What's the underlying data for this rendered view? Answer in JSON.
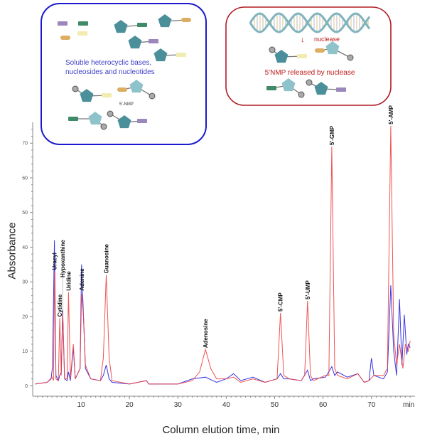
{
  "inset_left": {
    "caption_line1": "Soluble heterocyclic bases,",
    "caption_line2": "nucleosides and nucleotides",
    "molecule_label": "5'-NMP",
    "border_color": "#1a1acc"
  },
  "inset_right": {
    "arrow_label": "nuclease",
    "caption": "5'NMP released by nuclease",
    "border_color": "#b01c24"
  },
  "chart_data": {
    "type": "line",
    "xlabel": "Column elution time, min",
    "ylabel": "Absorbance",
    "x_unit_label": "min",
    "xlim": [
      0,
      79
    ],
    "ylim": [
      -3,
      76
    ],
    "xticks": [
      10,
      20,
      30,
      40,
      50,
      60,
      70
    ],
    "yticks": [
      0,
      10,
      20,
      30,
      40,
      50,
      60,
      70
    ],
    "grid": false,
    "series": [
      {
        "color": "#2020e0",
        "x": [
          0.5,
          3,
          3.8,
          4.1,
          4.5,
          4.8,
          5.3,
          5.6,
          5.9,
          6.2,
          6.6,
          7.1,
          7.4,
          7.8,
          8.4,
          8.8,
          9.8,
          10.1,
          10.5,
          10.9,
          12,
          14,
          14.6,
          15.2,
          15.8,
          16.4,
          20,
          23.5,
          24,
          30,
          33,
          35.7,
          38,
          40,
          41.5,
          43,
          45.5,
          48,
          50.5,
          51.2,
          51.9,
          53,
          55.5,
          56.8,
          57.4,
          58,
          60.5,
          61.8,
          62.4,
          63,
          65,
          67.2,
          68.5,
          69.5,
          70,
          70.5,
          72.5,
          73.3,
          74,
          74.6,
          75.2,
          75.8,
          76.3,
          76.8,
          77.3,
          77.6,
          78
        ],
        "y": [
          0.5,
          1,
          2,
          5.5,
          42,
          3,
          1.5,
          3,
          4,
          22,
          2,
          1.5,
          4,
          1.5,
          11,
          2,
          5,
          35,
          20,
          5,
          2,
          1.5,
          3,
          6,
          2,
          1,
          0.5,
          1.5,
          0.5,
          0.5,
          2,
          2.5,
          1,
          2,
          3.5,
          1.5,
          2.5,
          1,
          2,
          3.5,
          2,
          2,
          1.5,
          4.5,
          1.5,
          2,
          2.5,
          5.5,
          3,
          4,
          2.5,
          3.5,
          1,
          1.5,
          8,
          3,
          2,
          4,
          29,
          10,
          3,
          25,
          6,
          20.5,
          9,
          12,
          11
        ]
      },
      {
        "color": "#f04040",
        "x": [
          0.5,
          3,
          4,
          4.3,
          4.5,
          4.8,
          5.3,
          5.6,
          5.9,
          6.2,
          6.6,
          7.1,
          7.4,
          7.8,
          8.4,
          8.8,
          9.8,
          10.1,
          10.5,
          10.9,
          12,
          14,
          14.6,
          15.2,
          15.8,
          16.4,
          20,
          23.5,
          24,
          30,
          33,
          34.5,
          35.7,
          36.8,
          38,
          40,
          41.5,
          43,
          45.5,
          48,
          50.5,
          51.2,
          51.9,
          53,
          55.5,
          56.2,
          56.8,
          57.4,
          58,
          60.5,
          61.2,
          61.8,
          62.4,
          63,
          65,
          67.2,
          68.5,
          69.5,
          70.5,
          72.5,
          73.3,
          74,
          74.6,
          75.2,
          75.8,
          76.5,
          77,
          77.6,
          78
        ],
        "y": [
          0.5,
          1,
          2.5,
          1.5,
          33,
          2,
          1.5,
          19.5,
          3,
          21,
          2,
          2,
          27,
          2,
          12,
          2,
          5,
          26.5,
          20,
          6,
          2,
          1.5,
          8,
          32,
          8,
          1.5,
          0.5,
          1.5,
          0.5,
          0.5,
          1.5,
          4,
          10.5,
          5,
          2,
          2,
          2.5,
          1,
          2,
          1,
          2,
          21,
          3,
          2,
          1.5,
          3,
          24.5,
          3,
          1.5,
          3,
          3,
          69,
          5,
          3,
          2,
          3.5,
          1,
          1.5,
          3,
          3,
          5,
          75,
          15,
          6,
          12,
          5,
          12,
          10,
          13
        ]
      }
    ],
    "annotations": [
      {
        "text": "Uracyl",
        "x": 4.5,
        "y": 33
      },
      {
        "text": "Cytidine",
        "x": 5.6,
        "y": 19.5
      },
      {
        "text": "Hypoxanthine",
        "x": 6.2,
        "y": 21
      },
      {
        "text": "Uridine",
        "x": 7.4,
        "y": 27
      },
      {
        "text": "Adenine",
        "x": 10.1,
        "y": 27
      },
      {
        "text": "Guanosine",
        "x": 15.2,
        "y": 32
      },
      {
        "text": "Adenosine",
        "x": 35.7,
        "y": 10.5
      },
      {
        "text": "5'-CMP",
        "x": 51.2,
        "y": 21
      },
      {
        "text": "5'-UMP",
        "x": 56.8,
        "y": 24.5
      },
      {
        "text": "5'-GMP",
        "x": 61.8,
        "y": 69
      },
      {
        "text": "5'-AMP",
        "x": 74,
        "y": 75
      }
    ]
  }
}
